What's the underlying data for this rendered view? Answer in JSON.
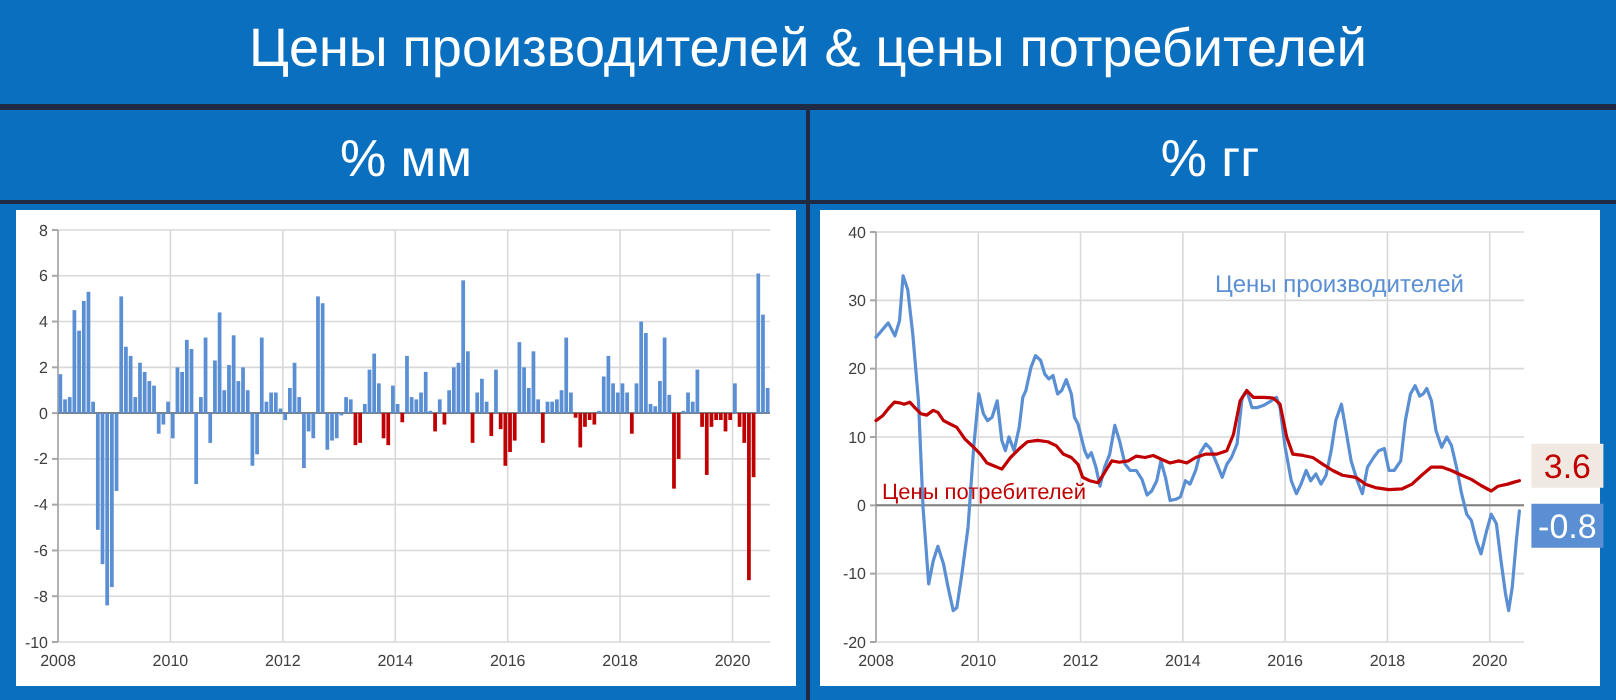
{
  "chart_data": [
    {
      "type": "bar",
      "title": "Цены производителей & цены потребителей",
      "subtitle": "% мм",
      "x": [
        "2008-01",
        "2008-02",
        "2008-03",
        "2008-04",
        "2008-05",
        "2008-06",
        "2008-07",
        "2008-08",
        "2008-09",
        "2008-10",
        "2008-11",
        "2008-12",
        "2009-01",
        "2009-02",
        "2009-03",
        "2009-04",
        "2009-05",
        "2009-06",
        "2009-07",
        "2009-08",
        "2009-09",
        "2009-10",
        "2009-11",
        "2009-12",
        "2010-01",
        "2010-02",
        "2010-03",
        "2010-04",
        "2010-05",
        "2010-06",
        "2010-07",
        "2010-08",
        "2010-09",
        "2010-10",
        "2010-11",
        "2010-12",
        "2011-01",
        "2011-02",
        "2011-03",
        "2011-04",
        "2011-05",
        "2011-06",
        "2011-07",
        "2011-08",
        "2011-09",
        "2011-10",
        "2011-11",
        "2011-12",
        "2012-01",
        "2012-02",
        "2012-03",
        "2012-04",
        "2012-05",
        "2012-06",
        "2012-07",
        "2012-08",
        "2012-09",
        "2012-10",
        "2012-11",
        "2012-12",
        "2013-01",
        "2013-02",
        "2013-03",
        "2013-04",
        "2013-05",
        "2013-06",
        "2013-07",
        "2013-08",
        "2013-09",
        "2013-10",
        "2013-11",
        "2013-12",
        "2014-01",
        "2014-02",
        "2014-03",
        "2014-04",
        "2014-05",
        "2014-06",
        "2014-07",
        "2014-08",
        "2014-09",
        "2014-10",
        "2014-11",
        "2014-12",
        "2015-01",
        "2015-02",
        "2015-03",
        "2015-04",
        "2015-05",
        "2015-06",
        "2015-07",
        "2015-08",
        "2015-09",
        "2015-10",
        "2015-11",
        "2015-12",
        "2016-01",
        "2016-02",
        "2016-03",
        "2016-04",
        "2016-05",
        "2016-06",
        "2016-07",
        "2016-08",
        "2016-09",
        "2016-10",
        "2016-11",
        "2016-12",
        "2017-01",
        "2017-02",
        "2017-03",
        "2017-04",
        "2017-05",
        "2017-06",
        "2017-07",
        "2017-08",
        "2017-09",
        "2017-10",
        "2017-11",
        "2017-12",
        "2018-01",
        "2018-02",
        "2018-03",
        "2018-04",
        "2018-05",
        "2018-06",
        "2018-07",
        "2018-08",
        "2018-09",
        "2018-10",
        "2018-11",
        "2018-12",
        "2019-01",
        "2019-02",
        "2019-03",
        "2019-04",
        "2019-05",
        "2019-06",
        "2019-07",
        "2019-08",
        "2019-09",
        "2019-10",
        "2019-11",
        "2019-12",
        "2020-01",
        "2020-02",
        "2020-03",
        "2020-04",
        "2020-05",
        "2020-06",
        "2020-07",
        "2020-08"
      ],
      "values": [
        1.7,
        0.6,
        0.7,
        4.5,
        3.6,
        4.9,
        5.3,
        0.5,
        -5.1,
        -6.6,
        -8.4,
        -7.6,
        -3.4,
        5.1,
        2.9,
        2.5,
        0.7,
        2.2,
        1.8,
        1.4,
        1.2,
        -0.9,
        -0.5,
        0.5,
        -1.1,
        2.0,
        1.8,
        3.2,
        2.8,
        -3.1,
        0.7,
        3.3,
        -1.3,
        2.3,
        4.4,
        1.0,
        2.1,
        3.4,
        1.4,
        2.0,
        1.0,
        -2.3,
        -1.8,
        3.3,
        0.5,
        0.9,
        0.9,
        0.2,
        -0.3,
        1.1,
        2.2,
        0.7,
        -2.4,
        -0.8,
        -1.1,
        5.1,
        4.8,
        -1.6,
        -1.2,
        -1.1,
        -0.1,
        0.7,
        0.6,
        -1.4,
        -1.3,
        0.4,
        1.9,
        2.6,
        1.3,
        -1.1,
        -1.4,
        1.2,
        0.4,
        -0.4,
        2.5,
        0.7,
        0.6,
        0.9,
        1.8,
        0.1,
        -0.8,
        0.6,
        -0.5,
        1.0,
        2.0,
        2.2,
        5.8,
        2.7,
        -1.3,
        0.9,
        1.5,
        0.5,
        -1.0,
        1.9,
        -0.7,
        -2.3,
        -1.7,
        -1.2,
        3.1,
        2.0,
        1.1,
        2.7,
        0.6,
        -1.3,
        0.5,
        0.5,
        0.6,
        1.0,
        3.3,
        0.9,
        -0.2,
        -1.5,
        -0.6,
        -0.3,
        -0.5,
        0.1,
        1.6,
        2.5,
        1.3,
        0.9,
        1.3,
        0.9,
        -0.9,
        1.3,
        4.0,
        3.5,
        0.4,
        0.3,
        1.4,
        3.3,
        0.8,
        -3.3,
        -2.0,
        0.1,
        0.9,
        0.5,
        1.9,
        -0.6,
        -2.7,
        -0.6,
        -0.3,
        -0.3,
        -0.8,
        -0.3,
        1.3,
        -0.6,
        -1.3,
        -7.3,
        -2.8,
        6.1,
        4.3,
        1.1
      ],
      "colors": [
        "#5b8fd4",
        "#5b8fd4",
        "#5b8fd4",
        "#5b8fd4",
        "#5b8fd4",
        "#5b8fd4",
        "#5b8fd4",
        "#5b8fd4",
        "#5b8fd4",
        "#5b8fd4",
        "#5b8fd4",
        "#5b8fd4",
        "#5b8fd4",
        "#5b8fd4",
        "#5b8fd4",
        "#5b8fd4",
        "#5b8fd4",
        "#5b8fd4",
        "#5b8fd4",
        "#5b8fd4",
        "#5b8fd4",
        "#5b8fd4",
        "#5b8fd4",
        "#5b8fd4",
        "#5b8fd4",
        "#5b8fd4",
        "#5b8fd4",
        "#5b8fd4",
        "#5b8fd4",
        "#5b8fd4",
        "#5b8fd4",
        "#5b8fd4",
        "#5b8fd4",
        "#5b8fd4",
        "#5b8fd4",
        "#5b8fd4",
        "#5b8fd4",
        "#5b8fd4",
        "#5b8fd4",
        "#5b8fd4",
        "#5b8fd4",
        "#5b8fd4",
        "#5b8fd4",
        "#5b8fd4",
        "#5b8fd4",
        "#5b8fd4",
        "#5b8fd4",
        "#5b8fd4",
        "#5b8fd4",
        "#5b8fd4",
        "#5b8fd4",
        "#5b8fd4",
        "#5b8fd4",
        "#5b8fd4",
        "#5b8fd4",
        "#5b8fd4",
        "#5b8fd4",
        "#5b8fd4",
        "#5b8fd4",
        "#5b8fd4",
        "#5b8fd4",
        "#5b8fd4",
        "#5b8fd4",
        "#c00000",
        "#c00000",
        "#5b8fd4",
        "#5b8fd4",
        "#5b8fd4",
        "#5b8fd4",
        "#c00000",
        "#c00000",
        "#5b8fd4",
        "#5b8fd4",
        "#c00000",
        "#5b8fd4",
        "#5b8fd4",
        "#5b8fd4",
        "#5b8fd4",
        "#5b8fd4",
        "#5b8fd4",
        "#c00000",
        "#5b8fd4",
        "#c00000",
        "#5b8fd4",
        "#5b8fd4",
        "#5b8fd4",
        "#5b8fd4",
        "#5b8fd4",
        "#c00000",
        "#5b8fd4",
        "#5b8fd4",
        "#5b8fd4",
        "#c00000",
        "#5b8fd4",
        "#c00000",
        "#c00000",
        "#c00000",
        "#c00000",
        "#5b8fd4",
        "#5b8fd4",
        "#5b8fd4",
        "#5b8fd4",
        "#5b8fd4",
        "#c00000",
        "#5b8fd4",
        "#5b8fd4",
        "#5b8fd4",
        "#5b8fd4",
        "#5b8fd4",
        "#5b8fd4",
        "#c00000",
        "#c00000",
        "#c00000",
        "#c00000",
        "#c00000",
        "#5b8fd4",
        "#5b8fd4",
        "#5b8fd4",
        "#5b8fd4",
        "#5b8fd4",
        "#5b8fd4",
        "#5b8fd4",
        "#c00000",
        "#5b8fd4",
        "#5b8fd4",
        "#5b8fd4",
        "#5b8fd4",
        "#5b8fd4",
        "#5b8fd4",
        "#5b8fd4",
        "#5b8fd4",
        "#c00000",
        "#c00000",
        "#5b8fd4",
        "#5b8fd4",
        "#5b8fd4",
        "#5b8fd4",
        "#c00000",
        "#c00000",
        "#c00000",
        "#c00000",
        "#c00000",
        "#c00000",
        "#c00000",
        "#5b8fd4",
        "#c00000",
        "#c00000",
        "#c00000",
        "#c00000",
        "#5b8fd4",
        "#5b8fd4",
        "#5b8fd4"
      ],
      "xlim": [
        "2008-01",
        "2020-09"
      ],
      "xticks": [
        "2008",
        "2010",
        "2012",
        "2014",
        "2016",
        "2018",
        "2020"
      ],
      "ylim": [
        -10,
        8
      ],
      "yticks": [
        -10,
        -8,
        -6,
        -4,
        -2,
        0,
        2,
        4,
        6,
        8
      ],
      "grid": true
    },
    {
      "type": "line",
      "subtitle": "% гг",
      "xlim": [
        2008,
        2020.67
      ],
      "xticks": [
        2008,
        2010,
        2012,
        2014,
        2016,
        2018,
        2020
      ],
      "ylim": [
        -20,
        40
      ],
      "yticks": [
        -20,
        -10,
        0,
        10,
        20,
        30,
        40
      ],
      "grid": true,
      "marker": "none",
      "line_style": "solid",
      "series": [
        {
          "name": "Цены производителей",
          "color": "#5b8fd4",
          "x": [
            2008.0,
            2008.24,
            2008.37,
            2008.46,
            2008.53,
            2008.62,
            2008.72,
            2008.83,
            2008.92,
            2009.03,
            2009.12,
            2009.21,
            2009.32,
            2009.41,
            2009.51,
            2009.58,
            2009.68,
            2009.8,
            2009.91,
            2010.01,
            2010.1,
            2010.18,
            2010.27,
            2010.37,
            2010.46,
            2010.53,
            2010.6,
            2010.7,
            2010.8,
            2010.87,
            2010.93,
            2011.03,
            2011.12,
            2011.22,
            2011.3,
            2011.38,
            2011.46,
            2011.55,
            2011.63,
            2011.72,
            2011.82,
            2011.88,
            2011.95,
            2012.08,
            2012.14,
            2012.21,
            2012.3,
            2012.38,
            2012.47,
            2012.57,
            2012.67,
            2012.76,
            2012.87,
            2012.97,
            2013.09,
            2013.2,
            2013.3,
            2013.39,
            2013.49,
            2013.57,
            2013.66,
            2013.75,
            2013.86,
            2013.95,
            2014.05,
            2014.14,
            2014.25,
            2014.34,
            2014.45,
            2014.54,
            2014.67,
            2014.77,
            2014.86,
            2014.95,
            2015.06,
            2015.16,
            2015.25,
            2015.35,
            2015.45,
            2015.57,
            2015.73,
            2015.83,
            2015.9,
            2016.0,
            2016.12,
            2016.22,
            2016.31,
            2016.41,
            2016.5,
            2016.6,
            2016.7,
            2016.8,
            2016.9,
            2016.99,
            2017.1,
            2017.19,
            2017.29,
            2017.41,
            2017.51,
            2017.61,
            2017.73,
            2017.83,
            2017.94,
            2018.03,
            2018.13,
            2018.26,
            2018.35,
            2018.45,
            2018.54,
            2018.63,
            2018.7,
            2018.77,
            2018.86,
            2018.95,
            2019.06,
            2019.16,
            2019.25,
            2019.35,
            2019.45,
            2019.55,
            2019.64,
            2019.74,
            2019.83,
            2019.94,
            2020.03,
            2020.13,
            2020.22,
            2020.31,
            2020.37,
            2020.44,
            2020.52,
            2020.58
          ],
          "values": [
            24.6,
            26.7,
            24.8,
            27,
            33.6,
            31.6,
            25,
            15.3,
            -0.3,
            -11.5,
            -8.1,
            -6,
            -8.6,
            -12,
            -15.4,
            -15,
            -10,
            -3.2,
            8.5,
            16.3,
            13.4,
            12.4,
            12.9,
            15.3,
            9.5,
            8,
            10,
            8,
            11.4,
            15.8,
            16.8,
            20.2,
            21.9,
            21.2,
            19.2,
            18.5,
            19,
            16.3,
            16.8,
            18.4,
            16.3,
            12.9,
            11.9,
            8,
            7,
            7.7,
            5.6,
            2.8,
            5.6,
            7.5,
            11.7,
            9.5,
            6,
            5.1,
            5.1,
            3.8,
            1.5,
            2.1,
            3.6,
            6.5,
            4.1,
            0.7,
            0.9,
            1.2,
            3.6,
            3.1,
            5.1,
            7.7,
            9,
            8.3,
            6,
            4.1,
            6,
            7,
            9,
            15.8,
            16.8,
            14.3,
            14.3,
            14.6,
            15.3,
            15.8,
            14.3,
            8.5,
            3.6,
            1.7,
            3.1,
            5.1,
            3.6,
            4.6,
            3.1,
            4.4,
            8,
            12.4,
            14.8,
            10.9,
            6.5,
            3.6,
            1.7,
            5.6,
            7,
            8,
            8.3,
            5.1,
            5.1,
            6.5,
            12.4,
            16.3,
            17.5,
            16,
            16.3,
            17.1,
            15.3,
            10.9,
            8.5,
            10,
            8.8,
            5.6,
            1.7,
            -1.3,
            -2.2,
            -5.2,
            -7.1,
            -3.7,
            -1.3,
            -2.7,
            -8.1,
            -13,
            -15.4,
            -12,
            -5.2,
            -0.8
          ]
        },
        {
          "name": "Цены потребителей",
          "color": "#c00000",
          "x": [
            2008.0,
            2008.13,
            2008.26,
            2008.36,
            2008.46,
            2008.55,
            2008.66,
            2008.76,
            2008.88,
            2008.99,
            2009.12,
            2009.21,
            2009.32,
            2009.45,
            2009.58,
            2009.74,
            2009.91,
            2010.04,
            2010.17,
            2010.3,
            2010.46,
            2010.63,
            2010.79,
            2010.96,
            2011.16,
            2011.36,
            2011.53,
            2011.66,
            2011.82,
            2011.95,
            2012.04,
            2012.18,
            2012.34,
            2012.47,
            2012.61,
            2012.76,
            2012.93,
            2013.09,
            2013.26,
            2013.42,
            2013.59,
            2013.75,
            2013.92,
            2014.08,
            2014.25,
            2014.45,
            2014.67,
            2014.86,
            2014.99,
            2015.12,
            2015.25,
            2015.38,
            2015.57,
            2015.77,
            2015.9,
            2016.03,
            2016.15,
            2016.35,
            2016.54,
            2016.74,
            2016.93,
            2017.12,
            2017.38,
            2017.57,
            2017.76,
            2018.03,
            2018.28,
            2018.48,
            2018.67,
            2018.86,
            2019.06,
            2019.25,
            2019.45,
            2019.64,
            2019.83,
            2020.03,
            2020.16,
            2020.35,
            2020.48,
            2020.58
          ],
          "values": [
            12.4,
            13.1,
            14.3,
            15.1,
            15,
            14.8,
            15.1,
            14.3,
            13.4,
            13.2,
            13.9,
            13.6,
            12.4,
            11.9,
            11.4,
            9.7,
            8.5,
            7.5,
            6.2,
            5.8,
            5.3,
            7,
            8.2,
            9.3,
            9.5,
            9.3,
            8.7,
            7.5,
            7,
            6,
            4.1,
            3.6,
            3.3,
            4.8,
            6.5,
            6.3,
            6.5,
            7.2,
            7,
            7.3,
            6.7,
            6.2,
            6.5,
            6.2,
            7,
            7.5,
            7.5,
            8,
            10.4,
            15.3,
            16.8,
            15.8,
            15.8,
            15.7,
            14.8,
            10,
            7.5,
            7.3,
            7,
            6,
            5.1,
            4.4,
            4.1,
            3.1,
            2.6,
            2.3,
            2.4,
            3.1,
            4.4,
            5.6,
            5.6,
            5.1,
            4.4,
            3.8,
            2.9,
            2.1,
            2.8,
            3.1,
            3.4,
            3.6
          ]
        }
      ],
      "annotations": [
        {
          "text": "-0.8",
          "x": 2020.58,
          "y": -0.8
        },
        {
          "text": "3.6",
          "x": 2020.58,
          "y": 3.6
        }
      ]
    }
  ]
}
